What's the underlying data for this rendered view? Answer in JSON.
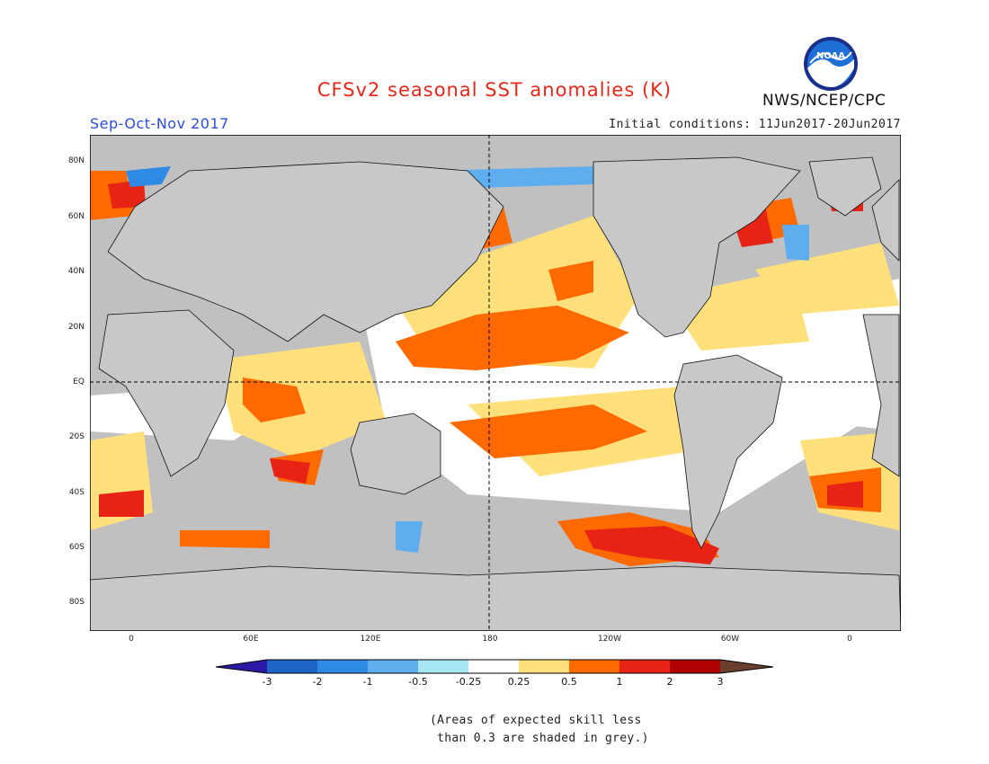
{
  "title": "CFSv2 seasonal SST anomalies (K)",
  "season": "Sep-Oct-Nov 2017",
  "initial_conditions": "Initial conditions: 11Jun2017-20Jun2017",
  "agency": "NWS/NCEP/CPC",
  "logo_text": "NOAA",
  "lat_labels": [
    "80N",
    "60N",
    "40N",
    "20N",
    "EQ",
    "20S",
    "40S",
    "60S",
    "80S"
  ],
  "lon_labels": [
    "0",
    "60E",
    "120E",
    "180",
    "120W",
    "60W",
    "0"
  ],
  "colorbar": {
    "labels": [
      "-3",
      "-2",
      "-1",
      "-0.5",
      "-0.25",
      "0.25",
      "0.5",
      "1",
      "2",
      "3"
    ],
    "colors": [
      "#2b1aa6",
      "#1f63c7",
      "#2f8ae6",
      "#5eaeef",
      "#a8e8f4",
      "#ffffff",
      "#ffe07a",
      "#ff6a00",
      "#e62314",
      "#b10000",
      "#6b3f2e"
    ]
  },
  "note": [
    "(Areas of expected skill less",
    " than 0.3 are shaded in grey.)"
  ],
  "colors": {
    "title": "#e8271b",
    "season": "#2a4ee0",
    "land": "#c8c8c8",
    "ocean_grey": "#c0c0c0"
  }
}
